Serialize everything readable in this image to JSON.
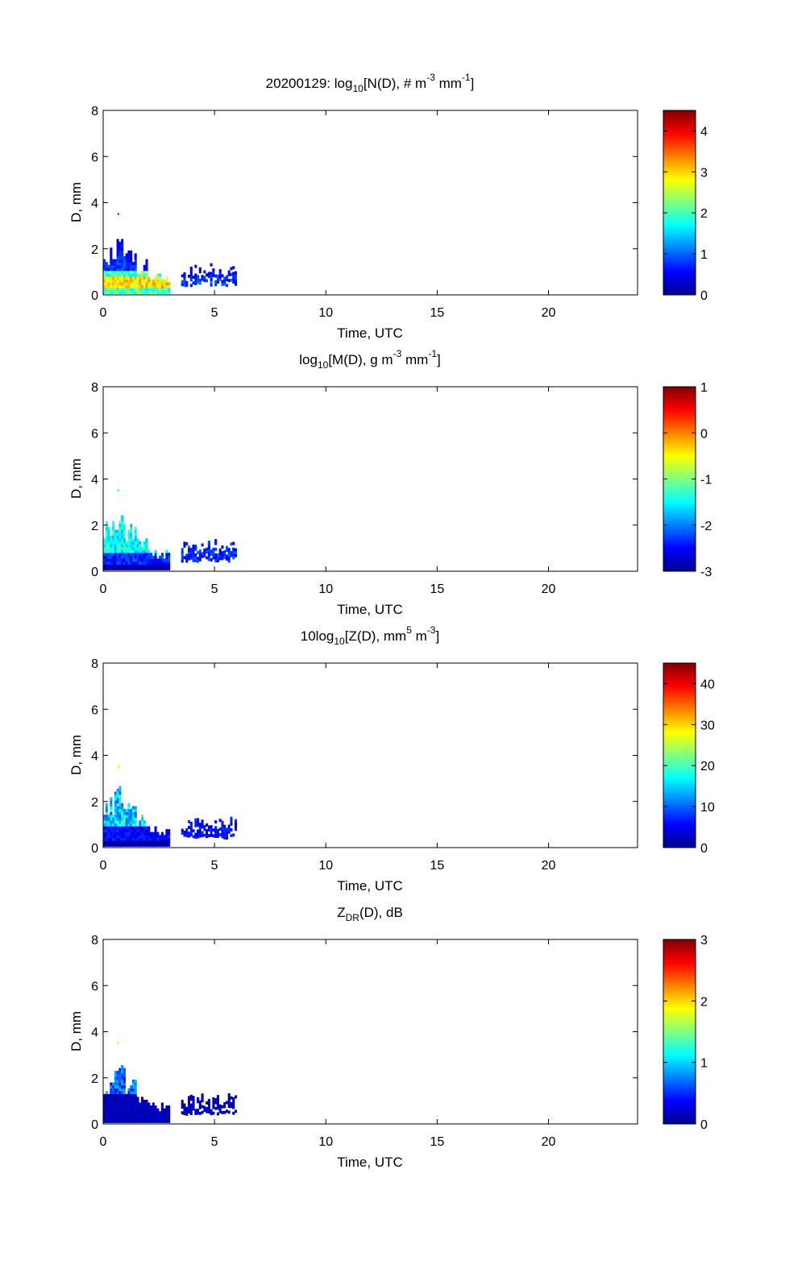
{
  "chart_data": [
    {
      "type": "heatmap",
      "title": "20200129: log10 [N(D), # m-3 mm-1]",
      "title_parts": {
        "date": "20200129:",
        "base": "log",
        "sub": "10",
        "body": "[N(D), # m",
        "exp1": "-3",
        "mid": "mm",
        "exp2": "-1",
        "end": "]"
      },
      "xlabel": "Time, UTC",
      "ylabel": "D, mm",
      "xlim": [
        0,
        24
      ],
      "ylim": [
        0,
        8
      ],
      "xticks": [
        0,
        5,
        10,
        15,
        20
      ],
      "yticks": [
        0,
        2,
        4,
        6,
        8
      ],
      "colorbar": {
        "min": 0,
        "max": 4.5,
        "ticks": [
          0,
          1,
          2,
          3,
          4
        ],
        "colormap": "jet"
      },
      "field": "N"
    },
    {
      "type": "heatmap",
      "title": "log10 [M(D), g m-3 mm-1]",
      "title_parts": {
        "base": "log",
        "sub": "10",
        "body": "[M(D), g m",
        "exp1": "-3",
        "mid": "mm",
        "exp2": "-1",
        "end": "]"
      },
      "xlabel": "Time, UTC",
      "ylabel": "D, mm",
      "xlim": [
        0,
        24
      ],
      "ylim": [
        0,
        8
      ],
      "xticks": [
        0,
        5,
        10,
        15,
        20
      ],
      "yticks": [
        0,
        2,
        4,
        6,
        8
      ],
      "colorbar": {
        "min": -3,
        "max": 1,
        "ticks": [
          -3,
          -2,
          -1,
          0,
          1
        ],
        "colormap": "jet"
      },
      "field": "M"
    },
    {
      "type": "heatmap",
      "title": "10log10 [Z(D), mm5 m-3]",
      "title_parts": {
        "base": "10log",
        "sub": "10",
        "body": "[Z(D),  mm",
        "exp1": "5",
        "mid": "m",
        "exp2": "-3",
        "end": "]"
      },
      "xlabel": "Time, UTC",
      "ylabel": "D, mm",
      "xlim": [
        0,
        24
      ],
      "ylim": [
        0,
        8
      ],
      "xticks": [
        0,
        5,
        10,
        15,
        20
      ],
      "yticks": [
        0,
        2,
        4,
        6,
        8
      ],
      "colorbar": {
        "min": 0,
        "max": 45,
        "ticks": [
          0,
          10,
          20,
          30,
          40
        ],
        "colormap": "jet"
      },
      "field": "Z"
    },
    {
      "type": "heatmap",
      "title": "ZDR(D), dB",
      "title_parts": {
        "base": "Z",
        "sub": "DR",
        "body": "(D), dB"
      },
      "xlabel": "Time, UTC",
      "ylabel": "D, mm",
      "xlim": [
        0,
        24
      ],
      "ylim": [
        0,
        8
      ],
      "xticks": [
        0,
        5,
        10,
        15,
        20
      ],
      "yticks": [
        0,
        2,
        4,
        6,
        8
      ],
      "colorbar": {
        "min": 0,
        "max": 3,
        "ticks": [
          0,
          1,
          2,
          3
        ],
        "colormap": "jet"
      },
      "field": "ZDR"
    }
  ],
  "observation": {
    "description": "Disdrometer drop size distribution, data present from about 0 to 6 UTC",
    "segments": [
      {
        "t_start": 0.0,
        "t_end": 0.5,
        "dmax": 2.2
      },
      {
        "t_start": 0.5,
        "t_end": 1.0,
        "dmax": 2.7
      },
      {
        "t_start": 1.0,
        "t_end": 1.5,
        "dmax": 2.0
      },
      {
        "t_start": 1.5,
        "t_end": 2.0,
        "dmax": 1.5
      },
      {
        "t_start": 2.0,
        "t_end": 3.0,
        "dmax": 0.9
      },
      {
        "t_start": 3.5,
        "t_end": 6.0,
        "dmax": 1.3
      }
    ],
    "isolated_drop": {
      "t": 0.65,
      "d": 3.5
    }
  }
}
